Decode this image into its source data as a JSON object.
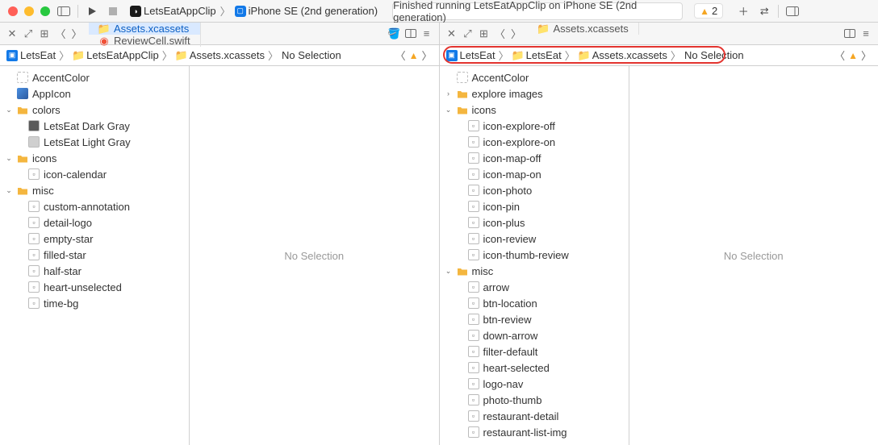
{
  "colors": {
    "accent": "#1279e8",
    "tab_active_bg": "#d9e9ff",
    "border": "#d0d0d0",
    "toolbar_bg": "#f6f6f6",
    "text": "#333333",
    "muted": "#999999",
    "folder": "#f4b63f",
    "highlight_ring": "#e3342f",
    "warn": "#f5a623"
  },
  "toolbar": {
    "scheme_app": "LetsEatAppClip",
    "scheme_device": "iPhone SE (2nd generation)",
    "status": "Finished running LetsEatAppClip on iPhone SE (2nd generation)",
    "warn_count": "2"
  },
  "left": {
    "tabs": [
      {
        "label": "Assets.xcassets",
        "icon": "folder",
        "active": true
      },
      {
        "label": "ReviewCell.swift",
        "icon": "swift",
        "active": false
      }
    ],
    "crumbs": [
      "LetsEat",
      "LetsEatAppClip",
      "Assets.xcassets",
      "No Selection"
    ],
    "canvas": "No Selection",
    "tree": [
      {
        "label": "AccentColor",
        "icon": "dash",
        "depth": 0
      },
      {
        "label": "AppIcon",
        "icon": "app",
        "depth": 0
      },
      {
        "label": "colors",
        "icon": "folder",
        "depth": 0,
        "disclosure": "open"
      },
      {
        "label": "LetsEat Dark Gray",
        "icon": "color-dark",
        "depth": 1
      },
      {
        "label": "LetsEat Light Gray",
        "icon": "color-light",
        "depth": 1
      },
      {
        "label": "icons",
        "icon": "folder",
        "depth": 0,
        "disclosure": "open"
      },
      {
        "label": "icon-calendar",
        "icon": "img",
        "depth": 1
      },
      {
        "label": "misc",
        "icon": "folder",
        "depth": 0,
        "disclosure": "open"
      },
      {
        "label": "custom-annotation",
        "icon": "img",
        "depth": 1
      },
      {
        "label": "detail-logo",
        "icon": "img",
        "depth": 1
      },
      {
        "label": "empty-star",
        "icon": "img",
        "depth": 1
      },
      {
        "label": "filled-star",
        "icon": "img",
        "depth": 1
      },
      {
        "label": "half-star",
        "icon": "img",
        "depth": 1
      },
      {
        "label": "heart-unselected",
        "icon": "img",
        "depth": 1
      },
      {
        "label": "time-bg",
        "icon": "img",
        "depth": 1
      }
    ]
  },
  "right": {
    "tabs": [
      {
        "label": "Assets.xcassets",
        "icon": "folder-gray",
        "active": false
      }
    ],
    "crumbs": [
      "LetsEat",
      "LetsEat",
      "Assets.xcassets",
      "No Selection"
    ],
    "canvas": "No Selection",
    "tree": [
      {
        "label": "AccentColor",
        "icon": "dash",
        "depth": 0
      },
      {
        "label": "explore images",
        "icon": "folder",
        "depth": 0,
        "disclosure": "closed"
      },
      {
        "label": "icons",
        "icon": "folder",
        "depth": 0,
        "disclosure": "open"
      },
      {
        "label": "icon-explore-off",
        "icon": "img",
        "depth": 1
      },
      {
        "label": "icon-explore-on",
        "icon": "img",
        "depth": 1
      },
      {
        "label": "icon-map-off",
        "icon": "img",
        "depth": 1
      },
      {
        "label": "icon-map-on",
        "icon": "img",
        "depth": 1
      },
      {
        "label": "icon-photo",
        "icon": "img",
        "depth": 1
      },
      {
        "label": "icon-pin",
        "icon": "img",
        "depth": 1
      },
      {
        "label": "icon-plus",
        "icon": "img",
        "depth": 1
      },
      {
        "label": "icon-review",
        "icon": "img",
        "depth": 1
      },
      {
        "label": "icon-thumb-review",
        "icon": "img",
        "depth": 1
      },
      {
        "label": "misc",
        "icon": "folder",
        "depth": 0,
        "disclosure": "open"
      },
      {
        "label": "arrow",
        "icon": "img",
        "depth": 1
      },
      {
        "label": "btn-location",
        "icon": "img",
        "depth": 1
      },
      {
        "label": "btn-review",
        "icon": "img",
        "depth": 1
      },
      {
        "label": "down-arrow",
        "icon": "img",
        "depth": 1
      },
      {
        "label": "filter-default",
        "icon": "img",
        "depth": 1
      },
      {
        "label": "heart-selected",
        "icon": "img",
        "depth": 1
      },
      {
        "label": "logo-nav",
        "icon": "img",
        "depth": 1
      },
      {
        "label": "photo-thumb",
        "icon": "img",
        "depth": 1
      },
      {
        "label": "restaurant-detail",
        "icon": "img",
        "depth": 1
      },
      {
        "label": "restaurant-list-img",
        "icon": "img",
        "depth": 1
      }
    ]
  }
}
